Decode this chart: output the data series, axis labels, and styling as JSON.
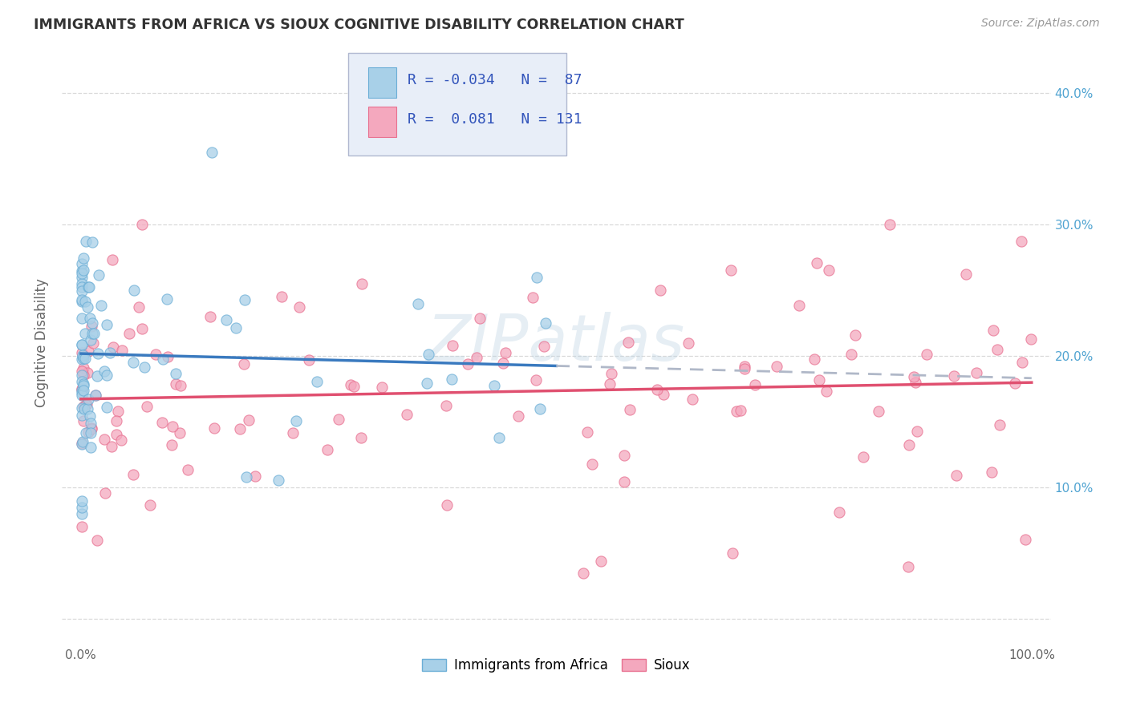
{
  "title": "IMMIGRANTS FROM AFRICA VS SIOUX COGNITIVE DISABILITY CORRELATION CHART",
  "source": "Source: ZipAtlas.com",
  "ylabel": "Cognitive Disability",
  "xlim": [
    -0.02,
    1.02
  ],
  "ylim": [
    -0.02,
    0.44
  ],
  "x_tick_positions": [
    0.0,
    1.0
  ],
  "x_tick_labels": [
    "0.0%",
    "100.0%"
  ],
  "y_ticks": [
    0.0,
    0.1,
    0.2,
    0.3,
    0.4
  ],
  "y_tick_labels_left": [
    "",
    "",
    "",
    "",
    ""
  ],
  "y_tick_labels_right": [
    "",
    "10.0%",
    "20.0%",
    "30.0%",
    "40.0%"
  ],
  "legend_label1": "Immigrants from Africa",
  "legend_label2": "Sioux",
  "scatter_color1": "#a8d0e8",
  "scatter_color2": "#f4a8be",
  "scatter_edge1": "#6baed6",
  "scatter_edge2": "#e87090",
  "trendline_color1": "#3a7abf",
  "trendline_color2": "#e05070",
  "trendline_dashed_color": "#b0b8c8",
  "watermark": "ZIPatlas",
  "background_color": "#ffffff",
  "grid_color": "#d0d0d0",
  "title_color": "#333333",
  "axis_label_color": "#666666",
  "tick_color_right": "#4fa3d1",
  "legend_text_color": "#3355bb",
  "legend_R_color": "#cc2244",
  "legend_box_color": "#e8eef8",
  "legend_border_color": "#b0b8d0"
}
